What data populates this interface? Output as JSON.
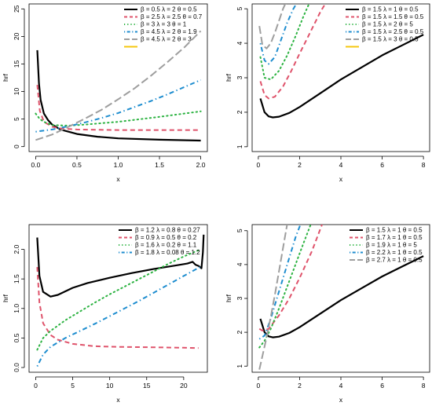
{
  "chart_data": [
    {
      "type": "line",
      "xlabel": "x",
      "ylabel": "hrf",
      "xlim": [
        -0.08,
        2.08
      ],
      "ylim": [
        -0.9,
        25.9
      ],
      "xticks": [
        "0.0",
        "0.5",
        "1.0",
        "1.5",
        "2.0"
      ],
      "xtick_values": [
        0,
        0.5,
        1,
        1.5,
        2
      ],
      "yticks": [
        "0",
        "5",
        "10",
        "15",
        "20",
        "25"
      ],
      "ytick_values": [
        0,
        5,
        10,
        15,
        20,
        25
      ],
      "legend_position": "top-right",
      "series": [
        {
          "name": "β = 0.5 λ = 2 θ = 0.5",
          "color": "#000000",
          "dash": "solid",
          "x": [
            0.02,
            0.04,
            0.06,
            0.1,
            0.15,
            0.2,
            0.3,
            0.5,
            0.75,
            1.0,
            1.5,
            2.0
          ],
          "y": [
            17.5,
            11.5,
            8.5,
            6.0,
            4.8,
            4.0,
            3.1,
            2.3,
            1.8,
            1.5,
            1.25,
            1.1
          ]
        },
        {
          "name": "β = 2.5 λ = 2.5 θ = 0.7",
          "color": "#DF536B",
          "dash": "dashed",
          "x": [
            0.02,
            0.05,
            0.1,
            0.2,
            0.3,
            0.5,
            1.0,
            1.5,
            2.0
          ],
          "y": [
            11.2,
            6.5,
            4.5,
            3.6,
            3.3,
            3.1,
            3.0,
            3.0,
            3.0
          ]
        },
        {
          "name": "β = 3 λ = 3 θ = 1",
          "color": "#2DB342",
          "dash": "dotted",
          "x": [
            0.0,
            0.05,
            0.1,
            0.2,
            0.4,
            0.6,
            1.0,
            1.5,
            2.0
          ],
          "y": [
            6.0,
            5.0,
            4.5,
            3.9,
            3.8,
            4.0,
            4.5,
            5.4,
            6.4
          ]
        },
        {
          "name": "β = 4.5 λ = 2 θ = 1.9",
          "color": "#1E8DCF",
          "dash": "dotdash",
          "x": [
            0.0,
            0.2,
            0.4,
            0.6,
            0.8,
            1.0,
            1.2,
            1.4,
            1.6,
            1.8,
            2.0
          ],
          "y": [
            2.7,
            3.1,
            3.7,
            4.4,
            5.2,
            6.1,
            7.2,
            8.3,
            9.5,
            10.8,
            12.1
          ]
        },
        {
          "name": "β = 4.5 λ = 2 θ = 3",
          "color": "#9E9E9E",
          "dash": "longdash",
          "x": [
            0.0,
            0.2,
            0.4,
            0.6,
            0.8,
            1.0,
            1.2,
            1.4,
            1.6,
            1.8,
            2.0
          ],
          "y": [
            1.2,
            2.2,
            3.6,
            5.1,
            6.7,
            8.6,
            10.6,
            12.9,
            15.4,
            18.0,
            21.0
          ]
        },
        {
          "name": "",
          "color": "#F5C710",
          "dash": "solid",
          "legend_only": true
        }
      ]
    },
    {
      "type": "line",
      "xlabel": "x",
      "ylabel": "hrf",
      "xlim": [
        -0.3,
        8.3
      ],
      "ylim": [
        0.86,
        5.14
      ],
      "xticks": [
        "0",
        "2",
        "4",
        "6",
        "8"
      ],
      "xtick_values": [
        0,
        2,
        4,
        6,
        8
      ],
      "yticks": [
        "1",
        "2",
        "3",
        "4",
        "5"
      ],
      "ytick_values": [
        1,
        2,
        3,
        4,
        5
      ],
      "legend_position": "top-right",
      "series": [
        {
          "name": "β = 1.5 λ = 1 θ = 0.5",
          "color": "#000000",
          "dash": "solid",
          "x": [
            0.1,
            0.3,
            0.5,
            0.7,
            1.0,
            1.5,
            2,
            3,
            4,
            5,
            6,
            7,
            8
          ],
          "y": [
            2.4,
            2.0,
            1.88,
            1.85,
            1.87,
            1.98,
            2.15,
            2.55,
            2.95,
            3.3,
            3.65,
            3.95,
            4.25
          ]
        },
        {
          "name": "β = 1.5 λ = 1.5 θ = 0.5",
          "color": "#DF536B",
          "dash": "dashed",
          "x": [
            0.1,
            0.3,
            0.5,
            0.8,
            1.2,
            1.6,
            2.0,
            2.5,
            3.0,
            3.3
          ],
          "y": [
            2.9,
            2.5,
            2.4,
            2.45,
            2.75,
            3.2,
            3.7,
            4.3,
            4.9,
            5.2
          ]
        },
        {
          "name": "β = 1.5 λ = 2 θ = 5",
          "color": "#2DB342",
          "dash": "dotted",
          "x": [
            0.1,
            0.3,
            0.6,
            1.0,
            1.4,
            1.8,
            2.2,
            2.5
          ],
          "y": [
            3.6,
            3.0,
            2.95,
            3.2,
            3.65,
            4.2,
            4.8,
            5.2
          ]
        },
        {
          "name": "β = 1.5 λ = 2.5 θ = 0.5",
          "color": "#1E8DCF",
          "dash": "dotdash",
          "x": [
            0.1,
            0.3,
            0.5,
            0.8,
            1.1,
            1.4,
            1.7,
            1.9
          ],
          "y": [
            4.0,
            3.5,
            3.4,
            3.6,
            4.1,
            4.6,
            5.0,
            5.2
          ]
        },
        {
          "name": "β = 1.5 λ = 3 θ = 0.5",
          "color": "#9E9E9E",
          "dash": "longdash",
          "x": [
            0.05,
            0.2,
            0.4,
            0.6,
            0.8,
            1.0,
            1.2,
            1.35
          ],
          "y": [
            4.5,
            3.95,
            3.85,
            4.0,
            4.3,
            4.65,
            5.0,
            5.2
          ]
        },
        {
          "name": "",
          "color": "#F5C710",
          "dash": "solid",
          "legend_only": true
        }
      ]
    },
    {
      "type": "line",
      "xlabel": "x",
      "ylabel": "hrf",
      "xlim": [
        -0.9,
        23.2
      ],
      "ylim": [
        -0.08,
        2.42
      ],
      "xticks": [
        "0",
        "5",
        "10",
        "15",
        "20"
      ],
      "xtick_values": [
        0,
        5,
        10,
        15,
        20
      ],
      "yticks": [
        "0.0",
        "0.5",
        "1.0",
        "1.5",
        "2.0"
      ],
      "ytick_values": [
        0,
        0.5,
        1.0,
        1.5,
        2.0
      ],
      "legend_position": "top-right",
      "series": [
        {
          "name": "β = 1.2 λ = 0.8 θ = 0.27",
          "color": "#000000",
          "dash": "solid",
          "x": [
            0.2,
            0.5,
            1.0,
            2.0,
            3.0,
            5,
            7,
            10,
            13,
            16,
            19,
            20.5,
            21.2,
            21.6,
            22.0,
            22.4,
            22.6,
            22.7
          ],
          "y": [
            2.2,
            1.55,
            1.28,
            1.2,
            1.23,
            1.35,
            1.43,
            1.52,
            1.6,
            1.67,
            1.73,
            1.76,
            1.79,
            1.74,
            1.72,
            1.68,
            1.95,
            2.25
          ]
        },
        {
          "name": "β = 0.9 λ = 0.5 θ = 0.2",
          "color": "#DF536B",
          "dash": "dashed",
          "x": [
            0.2,
            0.5,
            1,
            2,
            3,
            5,
            8,
            11,
            14,
            17,
            20,
            22
          ],
          "y": [
            1.7,
            1.1,
            0.75,
            0.55,
            0.47,
            0.4,
            0.36,
            0.35,
            0.345,
            0.34,
            0.335,
            0.33
          ]
        },
        {
          "name": "β = 1.6 λ = 0.2 θ = 1.1",
          "color": "#2DB342",
          "dash": "dotted",
          "x": [
            0.2,
            1,
            2,
            4,
            6,
            8,
            10,
            12,
            14,
            16,
            18,
            20,
            21.5,
            22.3
          ],
          "y": [
            0.3,
            0.5,
            0.62,
            0.8,
            0.95,
            1.1,
            1.24,
            1.37,
            1.5,
            1.63,
            1.76,
            1.88,
            1.96,
            2.0
          ]
        },
        {
          "name": "β = 1.8 λ = 0.08 θ = 1.2",
          "color": "#1E8DCF",
          "dash": "dotdash",
          "x": [
            0.2,
            1,
            2,
            4,
            6,
            8,
            10,
            12,
            14,
            16,
            18,
            20,
            22.2
          ],
          "y": [
            0.02,
            0.22,
            0.35,
            0.5,
            0.62,
            0.74,
            0.87,
            1.0,
            1.13,
            1.27,
            1.41,
            1.55,
            1.7
          ]
        }
      ]
    },
    {
      "type": "line",
      "xlabel": "x",
      "ylabel": "hrf",
      "xlim": [
        -0.3,
        8.3
      ],
      "ylim": [
        0.82,
        5.18
      ],
      "xticks": [
        "0",
        "2",
        "4",
        "6",
        "8"
      ],
      "xtick_values": [
        0,
        2,
        4,
        6,
        8
      ],
      "yticks": [
        "1",
        "2",
        "3",
        "4",
        "5"
      ],
      "ytick_values": [
        1,
        2,
        3,
        4,
        5
      ],
      "legend_position": "top-right",
      "series": [
        {
          "name": "β = 1.5 λ = 1 θ = 0.5",
          "color": "#000000",
          "dash": "solid",
          "x": [
            0.1,
            0.3,
            0.5,
            0.7,
            1.0,
            1.5,
            2,
            3,
            4,
            5,
            6,
            7,
            8
          ],
          "y": [
            2.4,
            2.0,
            1.88,
            1.85,
            1.87,
            1.98,
            2.15,
            2.55,
            2.95,
            3.3,
            3.65,
            3.95,
            4.25
          ]
        },
        {
          "name": "β = 1.7 λ = 1 θ = 0.5",
          "color": "#DF536B",
          "dash": "dashed",
          "x": [
            0.05,
            0.2,
            0.5,
            1.0,
            1.5,
            2.0,
            2.6,
            3.1
          ],
          "y": [
            2.1,
            2.05,
            2.1,
            2.5,
            3.0,
            3.6,
            4.4,
            5.2
          ]
        },
        {
          "name": "β = 1.9 λ = 1 θ = 5",
          "color": "#2DB342",
          "dash": "dotted",
          "x": [
            0.05,
            0.3,
            0.6,
            1.0,
            1.4,
            1.8,
            2.2,
            2.55
          ],
          "y": [
            1.55,
            1.75,
            2.1,
            2.7,
            3.35,
            4.0,
            4.65,
            5.2
          ]
        },
        {
          "name": "β = 2.2 λ = 1 θ = 0.5",
          "color": "#1E8DCF",
          "dash": "dotdash",
          "x": [
            0.05,
            0.3,
            0.6,
            0.9,
            1.2,
            1.5,
            1.8,
            2.05
          ],
          "y": [
            1.8,
            1.9,
            2.4,
            3.0,
            3.6,
            4.2,
            4.8,
            5.2
          ]
        },
        {
          "name": "β = 2.7 λ = 1 θ = 0.5",
          "color": "#9E9E9E",
          "dash": "longdash",
          "x": [
            0.05,
            0.2,
            0.4,
            0.6,
            0.8,
            1.0,
            1.2,
            1.4
          ],
          "y": [
            0.9,
            1.3,
            1.85,
            2.45,
            3.1,
            3.8,
            4.5,
            5.2
          ]
        }
      ]
    }
  ]
}
